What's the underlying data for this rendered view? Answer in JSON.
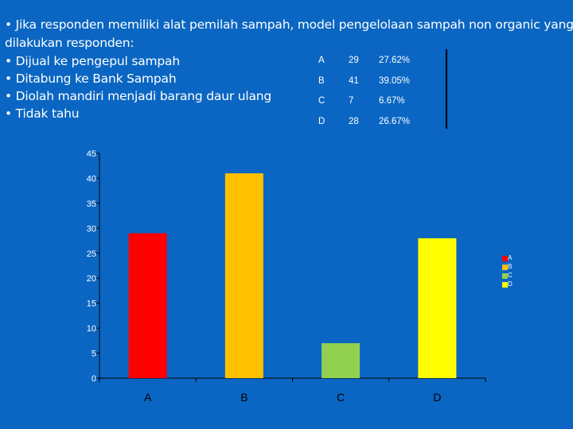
{
  "question": {
    "line1": "• Jika responden memiliki alat pemilah sampah, model pengelolaan sampah non organic yang",
    "line2": "dilakukan responden:"
  },
  "options": [
    "• Dijual ke pengepul sampah",
    "• Ditabung ke Bank Sampah",
    "• Diolah mandiri menjadi barang daur ulang",
    "• Tidak tahu"
  ],
  "summary_table": [
    {
      "label": "A",
      "count": "29",
      "percent": "27.62%"
    },
    {
      "label": "B",
      "count": "41",
      "percent": "39.05%"
    },
    {
      "label": "C",
      "count": "7",
      "percent": "6.67%"
    },
    {
      "label": "D",
      "count": "28",
      "percent": "26.67%"
    }
  ],
  "colors": {
    "background": "#0a66c2",
    "text": "#ffffff",
    "axis": "#000000"
  },
  "chart_data": {
    "type": "bar",
    "categories": [
      "A",
      "B",
      "C",
      "D"
    ],
    "values": [
      29,
      41,
      7,
      28
    ],
    "colors": [
      "#ff0000",
      "#ffc000",
      "#92d050",
      "#ffff00"
    ],
    "ylim": [
      0,
      45
    ],
    "yticks": [
      "0",
      "5",
      "10",
      "15",
      "20",
      "25",
      "30",
      "35",
      "40",
      "45"
    ],
    "grid": false,
    "legend": {
      "position": "right",
      "entries": [
        "A",
        "B",
        "C",
        "D"
      ]
    }
  }
}
